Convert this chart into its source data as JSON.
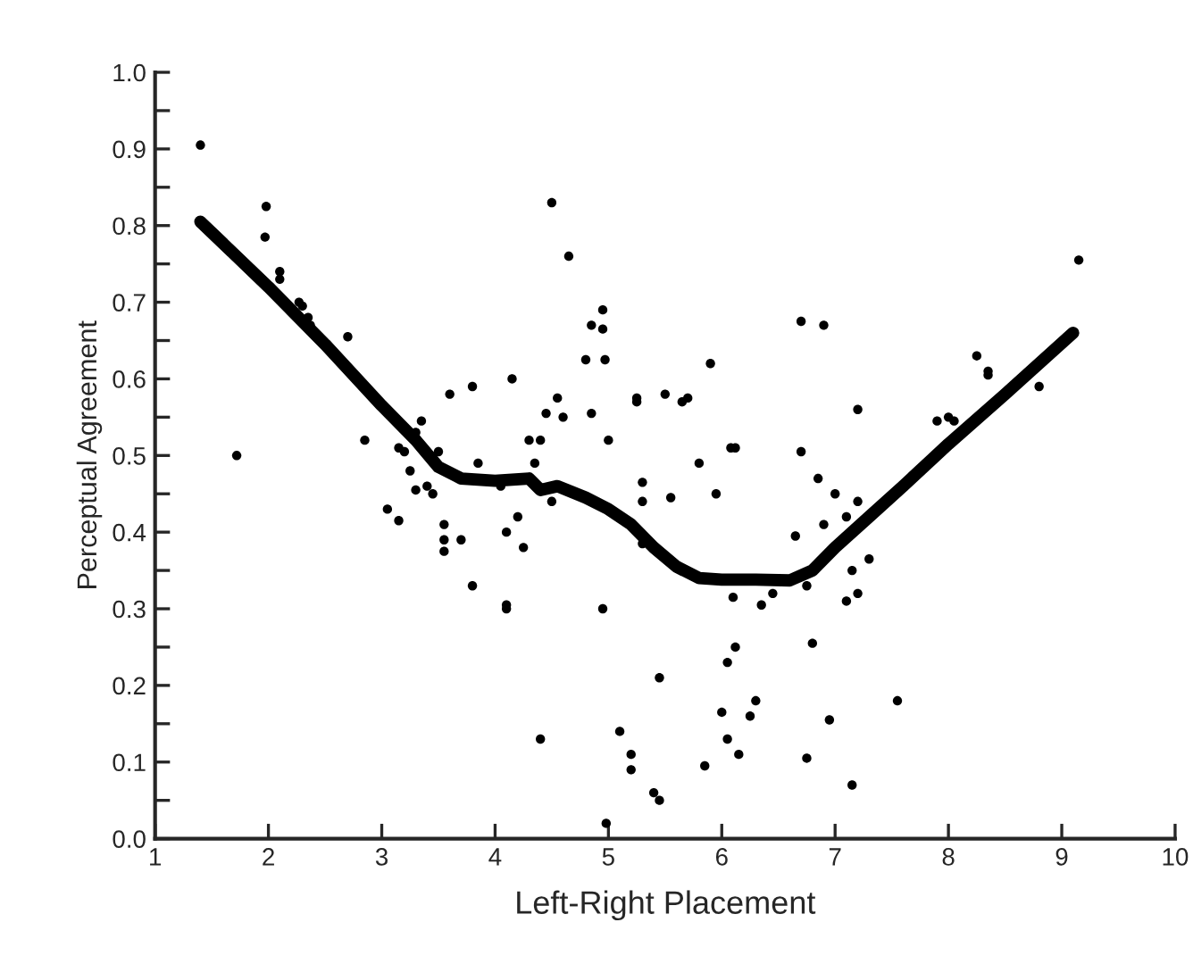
{
  "chart_data": {
    "type": "scatter",
    "xlabel": "Left-Right Placement",
    "ylabel": "Perceptual Agreement",
    "xlim": [
      1,
      10
    ],
    "xticks": [
      1,
      2,
      3,
      4,
      5,
      6,
      7,
      8,
      9,
      10
    ],
    "ylim": [
      0,
      1
    ],
    "yticks": [
      {
        "value": 0,
        "label": "0.0"
      },
      {
        "value": 0.05,
        "label": null
      },
      0.1,
      {
        "value": 0.15,
        "label": null
      },
      0.2,
      {
        "value": 0.25,
        "label": null
      },
      0.3,
      {
        "value": 0.35,
        "label": null
      },
      0.4,
      {
        "value": 0.45,
        "label": null
      },
      0.5,
      {
        "value": 0.55,
        "label": null
      },
      0.6,
      {
        "value": 0.65,
        "label": null
      },
      0.7,
      {
        "value": 0.75,
        "label": null
      },
      0.8,
      {
        "value": 0.85,
        "label": null
      },
      0.9,
      {
        "value": 0.95,
        "label": null
      },
      {
        "value": 1,
        "label": "1.0"
      }
    ],
    "grid": false,
    "legend": false,
    "marker": "circle",
    "series": [
      {
        "color": "#000000",
        "x": [
          1.4,
          1.72,
          1.98,
          1.97,
          2.1,
          2.1,
          2.27,
          2.3,
          2.35,
          2.37,
          2.7,
          2.85,
          3.05,
          3.15,
          3.15,
          3.2,
          3.25,
          3.3,
          3.3,
          3.35,
          3.4,
          3.45,
          3.5,
          3.55,
          3.55,
          3.55,
          3.6,
          3.7,
          3.8,
          3.8,
          3.85,
          4.05,
          4.1,
          4.1,
          4.1,
          4.15,
          4.2,
          4.25,
          4.3,
          4.35,
          4.4,
          4.4,
          4.5,
          4.45,
          4.5,
          4.55,
          4.6,
          4.65,
          4.8,
          4.85,
          4.85,
          4.95,
          4.95,
          4.95,
          4.97,
          5.0,
          4.98,
          5.1,
          5.2,
          5.2,
          5.25,
          5.25,
          5.3,
          5.3,
          5.3,
          5.4,
          5.45,
          5.45,
          5.5,
          5.55,
          5.65,
          5.7,
          5.8,
          5.85,
          5.9,
          5.95,
          6.0,
          6.05,
          6.05,
          6.08,
          6.1,
          6.12,
          6.12,
          6.15,
          6.25,
          6.3,
          6.35,
          6.45,
          6.65,
          6.7,
          6.7,
          6.75,
          6.75,
          6.8,
          6.85,
          6.9,
          6.9,
          6.95,
          7.0,
          7.1,
          7.1,
          7.15,
          7.15,
          7.2,
          7.2,
          7.2,
          7.3,
          7.55,
          7.9,
          8.0,
          8.05,
          8.25,
          8.35,
          8.35,
          8.8,
          9.15
        ],
        "values": [
          0.905,
          0.5,
          0.825,
          0.785,
          0.74,
          0.73,
          0.7,
          0.695,
          0.68,
          0.67,
          0.655,
          0.52,
          0.43,
          0.415,
          0.51,
          0.505,
          0.48,
          0.53,
          0.455,
          0.545,
          0.46,
          0.45,
          0.505,
          0.41,
          0.39,
          0.375,
          0.58,
          0.39,
          0.33,
          0.59,
          0.49,
          0.46,
          0.4,
          0.305,
          0.3,
          0.6,
          0.42,
          0.38,
          0.52,
          0.49,
          0.52,
          0.13,
          0.44,
          0.555,
          0.83,
          0.575,
          0.55,
          0.76,
          0.625,
          0.67,
          0.555,
          0.3,
          0.69,
          0.665,
          0.625,
          0.52,
          0.02,
          0.14,
          0.11,
          0.09,
          0.575,
          0.57,
          0.465,
          0.44,
          0.385,
          0.06,
          0.05,
          0.21,
          0.58,
          0.445,
          0.57,
          0.575,
          0.49,
          0.095,
          0.62,
          0.45,
          0.165,
          0.13,
          0.23,
          0.51,
          0.315,
          0.51,
          0.25,
          0.11,
          0.16,
          0.18,
          0.305,
          0.32,
          0.395,
          0.675,
          0.505,
          0.105,
          0.33,
          0.255,
          0.47,
          0.67,
          0.41,
          0.155,
          0.45,
          0.31,
          0.42,
          0.35,
          0.07,
          0.32,
          0.44,
          0.56,
          0.365,
          0.18,
          0.545,
          0.55,
          0.545,
          0.63,
          0.61,
          0.605,
          0.59,
          0.755
        ]
      },
      {
        "type": "line",
        "color": "#000000",
        "marker": "none",
        "line_style": "solid",
        "x": [
          1.4,
          2.0,
          2.5,
          3.0,
          3.3,
          3.5,
          3.7,
          4.0,
          4.3,
          4.4,
          4.55,
          4.8,
          5.0,
          5.2,
          5.4,
          5.6,
          5.8,
          6.0,
          6.3,
          6.6,
          6.8,
          7.0,
          7.3,
          7.6,
          8.0,
          8.5,
          9.1
        ],
        "values": [
          0.805,
          0.72,
          0.645,
          0.565,
          0.52,
          0.485,
          0.47,
          0.467,
          0.47,
          0.455,
          0.46,
          0.445,
          0.43,
          0.41,
          0.38,
          0.355,
          0.34,
          0.338,
          0.338,
          0.337,
          0.35,
          0.38,
          0.42,
          0.46,
          0.515,
          0.58,
          0.66
        ]
      }
    ]
  }
}
